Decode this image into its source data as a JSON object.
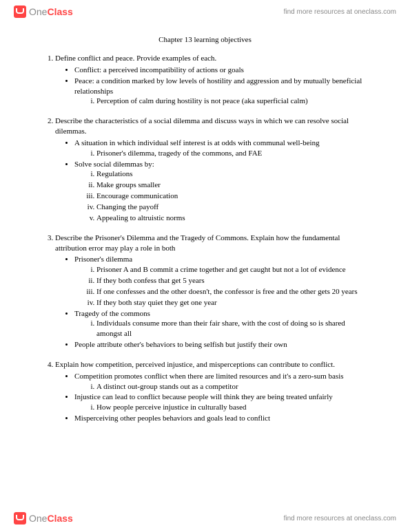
{
  "brand": {
    "one": "One",
    "class": "Class"
  },
  "header_link": "find more resources at oneclass.com",
  "footer_link": "find more resources at oneclass.com",
  "title": "Chapter 13 learning objectives",
  "sections": [
    {
      "heading": "Define conflict and peace. Provide examples of each.",
      "bullets": [
        {
          "text": "Conflict: a perceived incompatibility of actions or goals"
        },
        {
          "text": "Peace: a condition marked by low levels of hostility and aggression and by mutually beneficial relationships",
          "roman": [
            "Perception of calm during hostility is not peace (aka superficial calm)"
          ]
        }
      ]
    },
    {
      "heading": "Describe the characteristics of a social dilemma and discuss ways in which we can resolve social dilemmas.",
      "bullets": [
        {
          "text": "A situation in which individual self interest is at odds with communal well-being",
          "roman": [
            "Prisoner's dilemma, tragedy of the commons, and FAE"
          ]
        },
        {
          "text": "Solve social dilemmas by:",
          "roman": [
            "Regulations",
            "Make groups smaller",
            "Encourage communication",
            "Changing the payoff",
            "Appealing to altruistic norms"
          ]
        }
      ]
    },
    {
      "heading": "Describe the Prisoner's Dilemma and the Tragedy of Commons. Explain how the fundamental attribution error may play a role in both",
      "bullets": [
        {
          "text": "Prisoner's dilemma",
          "roman": [
            "Prisoner A and B commit a crime together and get caught but not a lot of evidence",
            "If they both confess that get 5 years",
            "If one confesses and the other doesn't, the confessor is free and the other gets 20 years",
            "If they both stay quiet they get one year"
          ]
        },
        {
          "text": "Tragedy of the commons",
          "roman": [
            "Individuals consume more than their fair share, with the cost of doing so is shared amongst all"
          ]
        },
        {
          "text": "People attribute other's behaviors to being selfish but justify their own"
        }
      ]
    },
    {
      "heading": "Explain how competition, perceived injustice, and misperceptions can contribute to conflict.",
      "bullets": [
        {
          "text": "Competition promotes conflict when there are limited resources and it's a zero-sum basis",
          "roman": [
            "A distinct out-group stands out as a competitor"
          ]
        },
        {
          "text": "Injustice can lead to conflict because people will think they are being treated unfairly",
          "roman": [
            "How people perceive injustice in culturally based"
          ]
        },
        {
          "text": "Misperceiving other peoples behaviors and goals lead to conflict"
        }
      ]
    }
  ]
}
